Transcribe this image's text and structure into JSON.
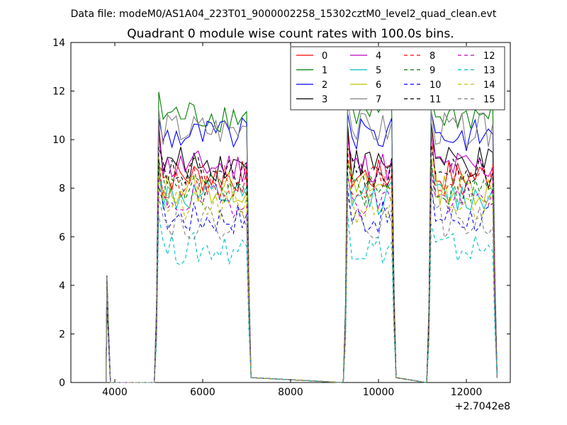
{
  "header": {
    "data_file": "Data file: modeM0/AS1A04_223T01_9000002258_15302cztM0_level2_quad_clean.evt"
  },
  "chart_data": {
    "type": "line",
    "title": "Quadrant 0 module wise count rates with 100.0s bins.",
    "xlabel": "",
    "ylabel": "",
    "x_offset_label": "+2.7042e8",
    "xlim": [
      3000,
      13000
    ],
    "ylim": [
      0,
      14
    ],
    "x_ticks": [
      4000,
      6000,
      8000,
      10000,
      12000
    ],
    "x_tick_labels": [
      "4000",
      "6000",
      "8000",
      "10000",
      "12000"
    ],
    "y_ticks": [
      0,
      2,
      4,
      6,
      8,
      10,
      12,
      14
    ],
    "y_tick_labels": [
      "0",
      "2",
      "4",
      "6",
      "8",
      "10",
      "12",
      "14"
    ],
    "grid": false,
    "legend_position": "top-right",
    "bin_width": 100,
    "segments": [
      {
        "start": 3800,
        "spike": 4.5
      },
      {
        "start": 5000,
        "end": 7000
      },
      {
        "start": 9300,
        "end": 10300
      },
      {
        "start": 11200,
        "end": 12600
      }
    ],
    "series": [
      {
        "name": "0",
        "color": "#ff0000",
        "dash": "solid",
        "level": 8.5,
        "peak": 10.8
      },
      {
        "name": "1",
        "color": "#008000",
        "dash": "solid",
        "level": 11.0,
        "peak": 12.2
      },
      {
        "name": "2",
        "color": "#0000ff",
        "dash": "solid",
        "level": 10.2,
        "peak": 11.2
      },
      {
        "name": "3",
        "color": "#000000",
        "dash": "solid",
        "level": 9.0,
        "peak": 10.8
      },
      {
        "name": "4",
        "color": "#bf00bf",
        "dash": "solid",
        "level": 8.9,
        "peak": 10.3
      },
      {
        "name": "5",
        "color": "#00bfbf",
        "dash": "solid",
        "level": 7.6,
        "peak": 9.0
      },
      {
        "name": "6",
        "color": "#bfbf00",
        "dash": "solid",
        "level": 8.0,
        "peak": 9.6
      },
      {
        "name": "7",
        "color": "#808080",
        "dash": "solid",
        "level": 10.4,
        "peak": 11.6
      },
      {
        "name": "8",
        "color": "#ff0000",
        "dash": "dash",
        "level": 8.3,
        "peak": 9.6
      },
      {
        "name": "9",
        "color": "#008000",
        "dash": "dash",
        "level": 7.9,
        "peak": 9.2
      },
      {
        "name": "10",
        "color": "#0000ff",
        "dash": "dash",
        "level": 6.8,
        "peak": 8.3
      },
      {
        "name": "11",
        "color": "#000000",
        "dash": "dash",
        "level": 8.6,
        "peak": 10.0
      },
      {
        "name": "12",
        "color": "#bf00bf",
        "dash": "dash",
        "level": 7.5,
        "peak": 8.9
      },
      {
        "name": "13",
        "color": "#00bfbf",
        "dash": "dash",
        "level": 5.5,
        "peak": 6.9
      },
      {
        "name": "14",
        "color": "#bfbf00",
        "dash": "dash",
        "level": 7.2,
        "peak": 8.6
      },
      {
        "name": "15",
        "color": "#808080",
        "dash": "dash",
        "level": 6.6,
        "peak": 7.9
      }
    ]
  }
}
